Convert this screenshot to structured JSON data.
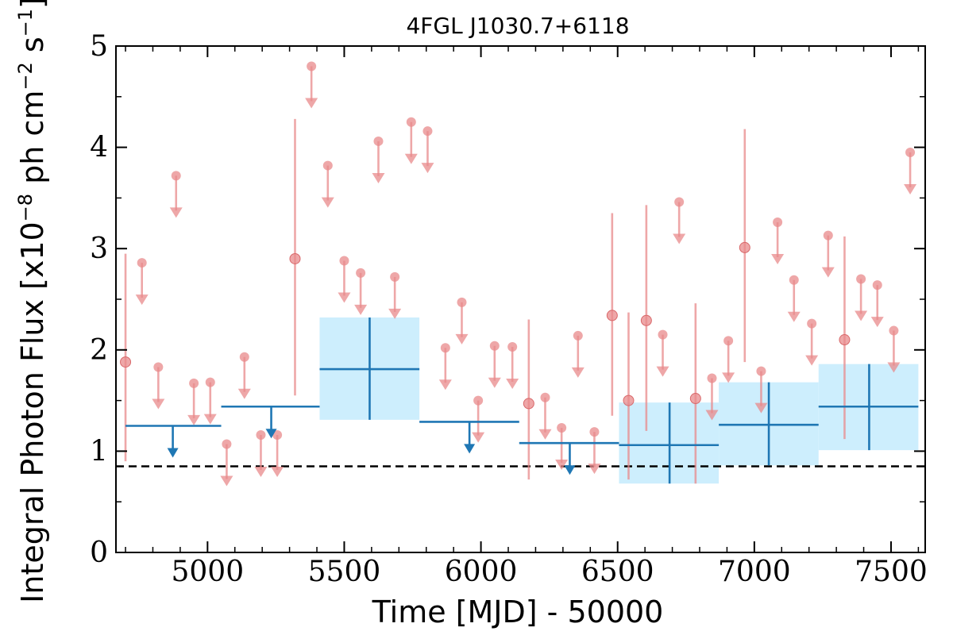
{
  "chart_data": {
    "type": "scatter",
    "title": "4FGL J1030.7+6118",
    "xlabel": "Time [MJD] - 50000",
    "ylabel": "Integral Photon Flux [x10",
    "ylabel_exp1": "−8",
    "ylabel_mid": " ph cm",
    "ylabel_exp2": "−2",
    "ylabel_mid2": " s",
    "ylabel_exp3": "−1",
    "ylabel_end": "]",
    "xlim": [
      4665,
      7625
    ],
    "ylim": [
      0,
      5
    ],
    "xticks": [
      5000,
      5500,
      6000,
      6500,
      7000,
      7500
    ],
    "xtick_labels": [
      "5000",
      "5500",
      "6000",
      "6500",
      "7000",
      "7500"
    ],
    "yticks": [
      0,
      1,
      2,
      3,
      4,
      5
    ],
    "ytick_labels": [
      "0",
      "1",
      "2",
      "3",
      "4",
      "5"
    ],
    "reference_line": {
      "y": 0.85,
      "style": "dashed",
      "color": "#000000"
    },
    "colors": {
      "short_bins": "#e8898b",
      "long_bins": "#1f77b4",
      "band": "#cdeefd"
    },
    "series": [
      {
        "key": "short_detections",
        "points": [
          {
            "x": 4700,
            "y": 1.88,
            "ylo": 0.9,
            "yhi": 2.95
          },
          {
            "x": 5320,
            "y": 2.9,
            "ylo": 1.55,
            "yhi": 4.28
          },
          {
            "x": 6175,
            "y": 1.47,
            "ylo": 0.72,
            "yhi": 2.3
          },
          {
            "x": 6480,
            "y": 2.34,
            "ylo": 1.35,
            "yhi": 3.35
          },
          {
            "x": 6540,
            "y": 1.5,
            "ylo": 0.72,
            "yhi": 2.37
          },
          {
            "x": 6605,
            "y": 2.29,
            "ylo": 1.2,
            "yhi": 3.43
          },
          {
            "x": 6785,
            "y": 1.52,
            "ylo": 0.68,
            "yhi": 2.46
          },
          {
            "x": 6965,
            "y": 3.01,
            "ylo": 1.88,
            "yhi": 4.18
          },
          {
            "x": 7330,
            "y": 2.1,
            "ylo": 1.12,
            "yhi": 3.12
          }
        ]
      },
      {
        "key": "short_upper_limits",
        "points": [
          {
            "x": 4760,
            "y": 2.86
          },
          {
            "x": 4820,
            "y": 1.83
          },
          {
            "x": 4885,
            "y": 3.72
          },
          {
            "x": 4950,
            "y": 1.67
          },
          {
            "x": 5010,
            "y": 1.68
          },
          {
            "x": 5070,
            "y": 1.07
          },
          {
            "x": 5135,
            "y": 1.93
          },
          {
            "x": 5195,
            "y": 1.16
          },
          {
            "x": 5255,
            "y": 1.16
          },
          {
            "x": 5380,
            "y": 4.8
          },
          {
            "x": 5440,
            "y": 3.82
          },
          {
            "x": 5500,
            "y": 2.88
          },
          {
            "x": 5560,
            "y": 2.76
          },
          {
            "x": 5625,
            "y": 4.06
          },
          {
            "x": 5685,
            "y": 2.72
          },
          {
            "x": 5745,
            "y": 4.25
          },
          {
            "x": 5805,
            "y": 4.16
          },
          {
            "x": 5870,
            "y": 2.02
          },
          {
            "x": 5930,
            "y": 2.47
          },
          {
            "x": 5990,
            "y": 1.5
          },
          {
            "x": 6050,
            "y": 2.04
          },
          {
            "x": 6115,
            "y": 2.03
          },
          {
            "x": 6235,
            "y": 1.53
          },
          {
            "x": 6295,
            "y": 1.23
          },
          {
            "x": 6355,
            "y": 2.14
          },
          {
            "x": 6415,
            "y": 1.19
          },
          {
            "x": 6665,
            "y": 2.15
          },
          {
            "x": 6725,
            "y": 3.46
          },
          {
            "x": 6845,
            "y": 1.72
          },
          {
            "x": 6905,
            "y": 2.09
          },
          {
            "x": 7025,
            "y": 1.79
          },
          {
            "x": 7085,
            "y": 3.26
          },
          {
            "x": 7145,
            "y": 2.69
          },
          {
            "x": 7210,
            "y": 2.26
          },
          {
            "x": 7270,
            "y": 3.13
          },
          {
            "x": 7390,
            "y": 2.7
          },
          {
            "x": 7450,
            "y": 2.64
          },
          {
            "x": 7510,
            "y": 2.19
          },
          {
            "x": 7570,
            "y": 3.95
          }
        ]
      },
      {
        "key": "long_upper_limits",
        "points": [
          {
            "x": 4873,
            "x0": 4700,
            "x1": 5050,
            "y": 1.25
          },
          {
            "x": 5233,
            "x0": 5050,
            "x1": 5410,
            "y": 1.44
          },
          {
            "x": 5958,
            "x0": 5775,
            "x1": 6140,
            "y": 1.29
          },
          {
            "x": 6325,
            "x0": 6140,
            "x1": 6505,
            "y": 1.08
          }
        ]
      },
      {
        "key": "long_detections",
        "points": [
          {
            "x": 5593,
            "x0": 5410,
            "x1": 5775,
            "y": 1.81,
            "ylo": 1.31,
            "yhi": 2.32
          },
          {
            "x": 6690,
            "x0": 6505,
            "x1": 6870,
            "y": 1.06,
            "ylo": 0.68,
            "yhi": 1.48
          },
          {
            "x": 7053,
            "x0": 6870,
            "x1": 7235,
            "y": 1.26,
            "ylo": 0.86,
            "yhi": 1.68
          },
          {
            "x": 7420,
            "x0": 7235,
            "x1": 7600,
            "y": 1.44,
            "ylo": 1.01,
            "yhi": 1.86
          }
        ]
      }
    ]
  }
}
